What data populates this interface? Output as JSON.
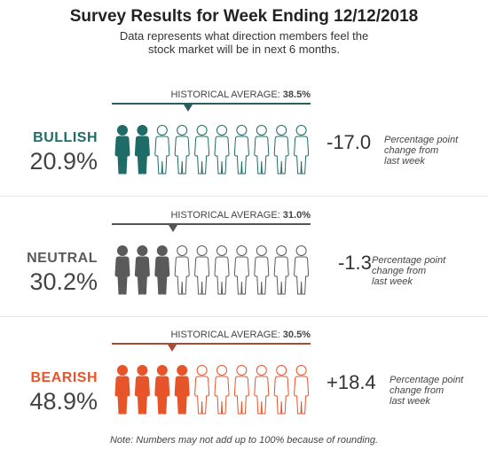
{
  "header": {
    "title": "Survey Results for Week Ending 12/12/2018",
    "subtitle": "Data represents what direction members feel the\nstock market will be in next 6 months."
  },
  "footnote": "Note: Numbers may not add up to 100% because of rounding.",
  "hist_prefix": "HISTORICAL AVERAGE:",
  "chart_data": {
    "type": "bar",
    "icon": "person-icon",
    "icons_per_row": 10,
    "categories": [
      "BULLISH",
      "NEUTRAL",
      "BEARISH"
    ],
    "values": [
      20.9,
      30.2,
      48.9
    ],
    "value_labels": [
      "20.9%",
      "30.2%",
      "48.9%"
    ],
    "historical_average": [
      38.5,
      31.0,
      30.5
    ],
    "historical_average_labels": [
      "38.5%",
      "31.0%",
      "30.5%"
    ],
    "change": [
      -17.0,
      -1.3,
      18.4
    ],
    "change_labels": [
      "-17.0",
      "-1.3",
      "+18.4"
    ],
    "change_note": "Percentage point\nchange from\nlast week",
    "colors": [
      "#1e6b68",
      "#5a5a5a",
      "#e8542a"
    ],
    "marker_colors": [
      "#2a5f5c",
      "#555555",
      "#b04a35"
    ]
  }
}
